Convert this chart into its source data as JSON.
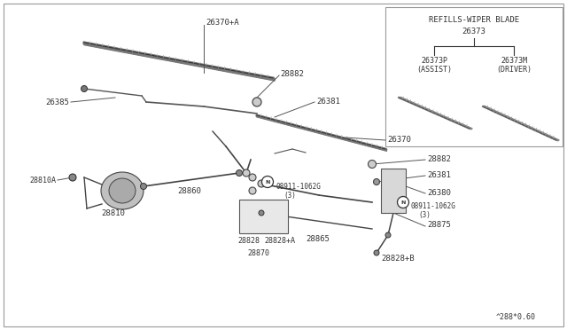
{
  "bg_color": "#ffffff",
  "border_color": "#999999",
  "line_color": "#555555",
  "dark_line": "#333333",
  "footer_text": "^288*0.60",
  "inset_title": "REFILLS-WIPER BLADE",
  "inset_part": "26373",
  "inset_left_label1": "26373P",
  "inset_left_label2": "(ASSIST)",
  "inset_right_label1": "26373M",
  "inset_right_label2": "(DRIVER)"
}
